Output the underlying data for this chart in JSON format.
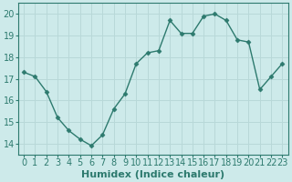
{
  "x": [
    0,
    1,
    2,
    3,
    4,
    5,
    6,
    7,
    8,
    9,
    10,
    11,
    12,
    13,
    14,
    15,
    16,
    17,
    18,
    19,
    20,
    21,
    22,
    23
  ],
  "y": [
    17.3,
    17.1,
    16.4,
    15.2,
    14.6,
    14.2,
    13.9,
    14.4,
    15.6,
    16.3,
    17.7,
    18.2,
    18.3,
    19.7,
    19.1,
    19.1,
    19.9,
    20.0,
    19.7,
    18.8,
    18.7,
    16.5,
    17.1,
    17.7
  ],
  "line_color": "#2d7a6e",
  "marker": "D",
  "marker_size": 2.5,
  "bg_color": "#cdeaea",
  "grid_major_color": "#b8d8d8",
  "grid_minor_color": "#c8e4e4",
  "xlabel": "Humidex (Indice chaleur)",
  "xlabel_fontsize": 8,
  "tick_fontsize": 7,
  "ylim": [
    13.5,
    20.5
  ],
  "xlim": [
    -0.5,
    23.5
  ],
  "yticks": [
    14,
    15,
    16,
    17,
    18,
    19,
    20
  ],
  "xticks": [
    0,
    1,
    2,
    3,
    4,
    5,
    6,
    7,
    8,
    9,
    10,
    11,
    12,
    13,
    14,
    15,
    16,
    17,
    18,
    19,
    20,
    21,
    22,
    23
  ]
}
